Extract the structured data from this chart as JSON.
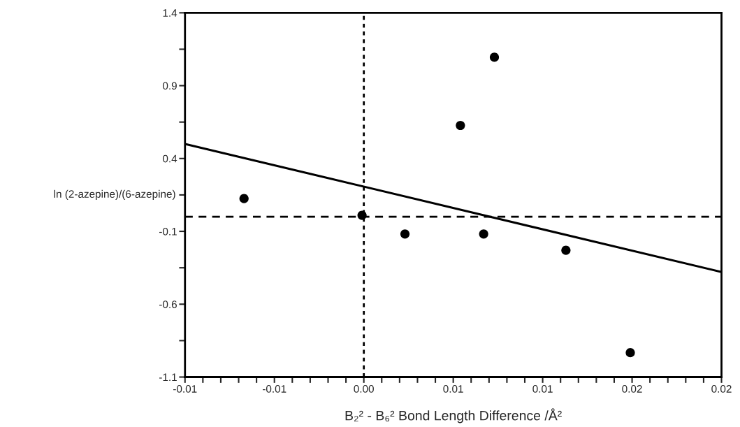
{
  "chart_data": {
    "type": "scatter",
    "xlabel": "B₂² - B₆² Bond Length Difference /Å²",
    "ylabel": "ln (2-azepine)/(6-azepine)",
    "series": [
      {
        "type": "scatter",
        "color": "#000000",
        "marker": "circle",
        "x": [
          -0.0067,
          -0.0001,
          0.0023,
          0.0054,
          0.0067,
          0.0073,
          0.0113,
          0.0149
        ],
        "values": [
          0.125,
          0.01,
          -0.118,
          0.627,
          -0.118,
          1.095,
          -0.23,
          -0.933
        ]
      },
      {
        "type": "line",
        "color": "#000000",
        "line_style": "solid",
        "x": [
          -0.01,
          0.02
        ],
        "values": [
          0.5,
          -0.379
        ]
      }
    ],
    "ref_lines": [
      {
        "axis": "x",
        "value": 0,
        "line_style": "dotted",
        "color": "#000000"
      },
      {
        "axis": "y",
        "value": 0,
        "line_style": "dashed",
        "color": "#000000"
      }
    ],
    "xlim": [
      -0.01,
      0.02
    ],
    "xticks": [
      {
        "value": -0.01,
        "label": "-0.01"
      },
      {
        "value": -0.009,
        "label": null
      },
      {
        "value": -0.008,
        "label": null
      },
      {
        "value": -0.007,
        "label": null
      },
      {
        "value": -0.006,
        "label": null
      },
      {
        "value": -0.005,
        "label": "-0.01"
      },
      {
        "value": -0.004,
        "label": null
      },
      {
        "value": -0.003,
        "label": null
      },
      {
        "value": -0.002,
        "label": null
      },
      {
        "value": -0.001,
        "label": null
      },
      {
        "value": 0,
        "label": "0.00"
      },
      {
        "value": 0.001,
        "label": null
      },
      {
        "value": 0.002,
        "label": null
      },
      {
        "value": 0.003,
        "label": null
      },
      {
        "value": 0.004,
        "label": null
      },
      {
        "value": 0.005,
        "label": "0.01"
      },
      {
        "value": 0.006,
        "label": null
      },
      {
        "value": 0.007,
        "label": null
      },
      {
        "value": 0.008,
        "label": null
      },
      {
        "value": 0.009,
        "label": null
      },
      {
        "value": 0.01,
        "label": "0.01"
      },
      {
        "value": 0.011,
        "label": null
      },
      {
        "value": 0.012,
        "label": null
      },
      {
        "value": 0.013,
        "label": null
      },
      {
        "value": 0.014,
        "label": null
      },
      {
        "value": 0.015,
        "label": "0.02"
      },
      {
        "value": 0.016,
        "label": null
      },
      {
        "value": 0.017,
        "label": null
      },
      {
        "value": 0.018,
        "label": null
      },
      {
        "value": 0.019,
        "label": null
      },
      {
        "value": 0.02,
        "label": "0.02"
      }
    ],
    "ylim": [
      -1.1,
      1.4
    ],
    "yticks": [
      {
        "value": -1.1,
        "label": "-1.1"
      },
      {
        "value": -0.85,
        "label": null
      },
      {
        "value": -0.6,
        "label": "-0.6"
      },
      {
        "value": -0.35,
        "label": null
      },
      {
        "value": -0.1,
        "label": "-0.1"
      },
      {
        "value": 0.15,
        "label": null
      },
      {
        "value": 0.4,
        "label": "0.4"
      },
      {
        "value": 0.65,
        "label": null
      },
      {
        "value": 0.9,
        "label": "0.9"
      },
      {
        "value": 1.15,
        "label": null
      },
      {
        "value": 1.4,
        "label": "1.4"
      }
    ],
    "grid": false,
    "legend": false
  }
}
